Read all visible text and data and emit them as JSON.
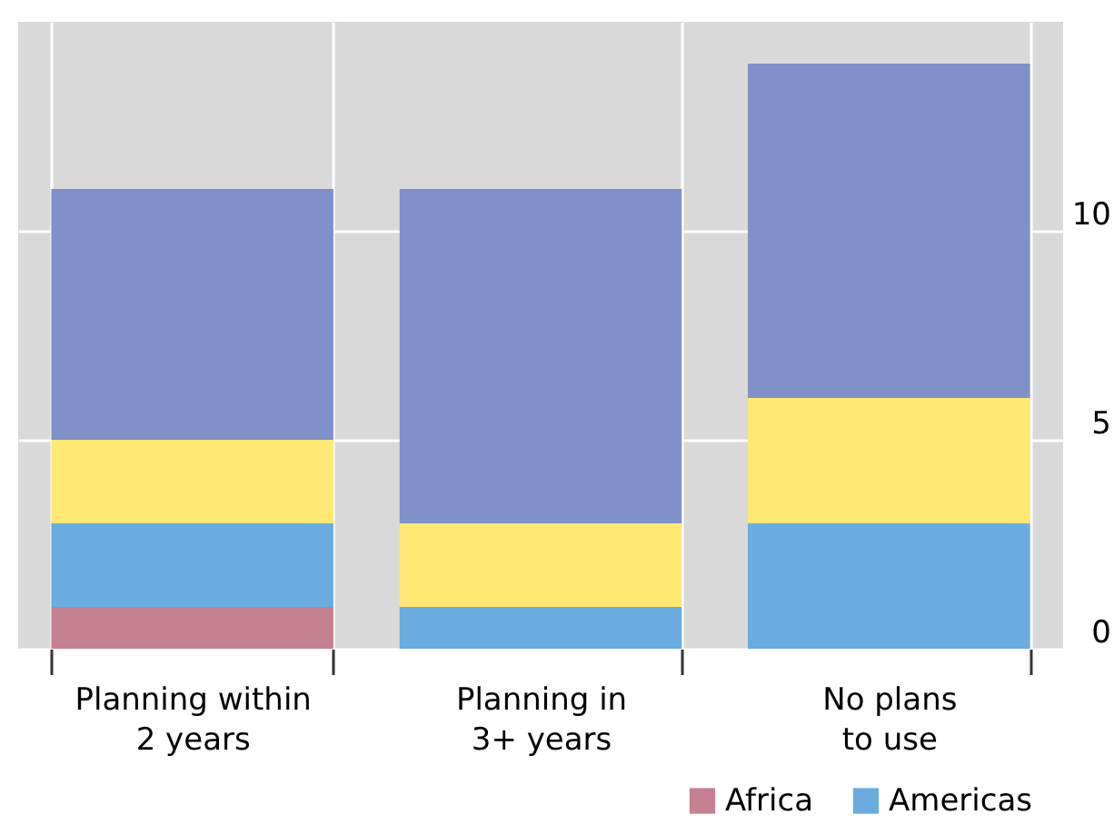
{
  "chart_data": {
    "type": "bar",
    "stacked": true,
    "categories": [
      "Planning within\n2 years",
      "Planning in\n3+ years",
      "No plans\nto use"
    ],
    "series": [
      {
        "name": "Africa",
        "color": "#c48090",
        "values": [
          1,
          0,
          0
        ]
      },
      {
        "name": "Americas",
        "color": "#6aabe0",
        "values": [
          2,
          1,
          3
        ]
      },
      {
        "color": "#ffe873",
        "values": [
          2,
          2,
          3
        ]
      },
      {
        "color": "#8090c8",
        "values": [
          6,
          8,
          8
        ]
      }
    ],
    "ylim": [
      0,
      15
    ],
    "yticks": [
      0,
      5,
      10
    ],
    "grid": true,
    "legend": "bottom right"
  }
}
